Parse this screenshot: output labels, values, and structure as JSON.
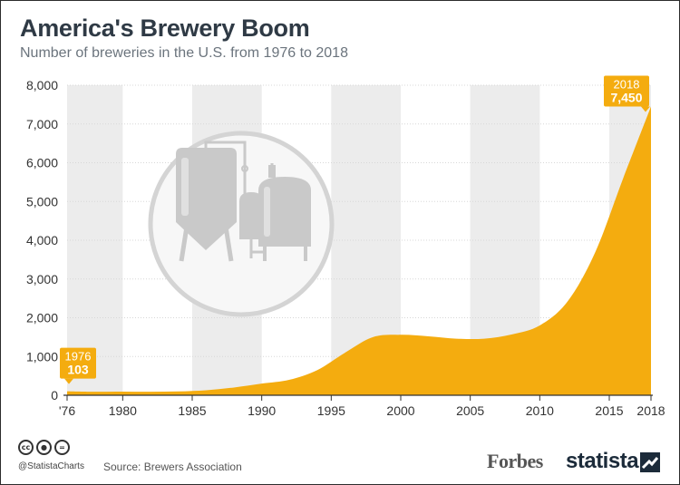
{
  "title": "America's Brewery Boom",
  "subtitle": "Number of breweries in the U.S. from 1976 to 2018",
  "source": "Source: Brewers Association",
  "handle": "@StatistaCharts",
  "brands": {
    "forbes": "Forbes",
    "statista": "statista"
  },
  "license_icons": [
    "cc-icon",
    "person-icon",
    "equal-icon"
  ],
  "colors": {
    "area": "#f4ac0f",
    "area_light": "#fbc02d",
    "label_bg": "#f4ac0f",
    "band": "#ececec",
    "icon_gray": "#c9c9c9",
    "text": "#2f3a45"
  },
  "chart_data": {
    "type": "area",
    "x": [
      1976,
      1978,
      1980,
      1982,
      1984,
      1986,
      1988,
      1990,
      1992,
      1994,
      1996,
      1998,
      2000,
      2002,
      2004,
      2006,
      2008,
      2010,
      2012,
      2014,
      2016,
      2018
    ],
    "values": [
      103,
      90,
      95,
      90,
      100,
      130,
      200,
      300,
      400,
      650,
      1100,
      1500,
      1560,
      1520,
      1460,
      1460,
      1570,
      1800,
      2420,
      3700,
      5600,
      7450
    ],
    "ylim": [
      0,
      8000
    ],
    "yticks": [
      "0",
      "1,000",
      "2,000",
      "3,000",
      "4,000",
      "5,000",
      "6,000",
      "7,000",
      "8,000"
    ],
    "xticks": [
      {
        "year": 1976,
        "label": "'76"
      },
      {
        "year": 1980,
        "label": "1980"
      },
      {
        "year": 1985,
        "label": "1985"
      },
      {
        "year": 1990,
        "label": "1990"
      },
      {
        "year": 1995,
        "label": "1995"
      },
      {
        "year": 2000,
        "label": "2000"
      },
      {
        "year": 2005,
        "label": "2005"
      },
      {
        "year": 2010,
        "label": "2010"
      },
      {
        "year": 2015,
        "label": "2015"
      },
      {
        "year": 2018,
        "label": "2018"
      }
    ],
    "annotations": [
      {
        "year_label": "1976",
        "value_label": "103",
        "x": 1976,
        "y": 103
      },
      {
        "year_label": "2018",
        "value_label": "7,450",
        "x": 2018,
        "y": 7450
      }
    ],
    "background_bands": [
      [
        1976,
        1980
      ],
      [
        1985,
        1990
      ],
      [
        1995,
        2000
      ],
      [
        2005,
        2010
      ],
      [
        2015,
        2018
      ]
    ],
    "grid": true
  }
}
